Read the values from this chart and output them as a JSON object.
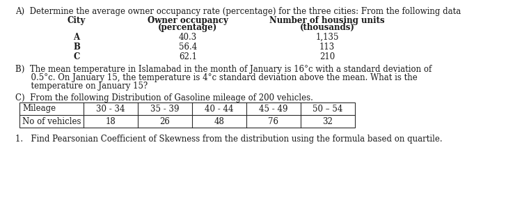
{
  "bg_color": "#ffffff",
  "text_color": "#1a1a1a",
  "section_A_title": "A)  Determine the average owner occupancy rate (percentage) for the three cities: From the following data",
  "col_A_city": "City",
  "col_A_owner": "Owner occupancy",
  "col_A_owner2": "(percentage)",
  "col_A_housing": "Number of housing units",
  "col_A_housing2": "(thousands)",
  "table_A_rows": [
    [
      "A",
      "40.3",
      "1,135"
    ],
    [
      "B",
      "56.4",
      "113"
    ],
    [
      "C",
      "62.1",
      "210"
    ]
  ],
  "section_B_line1": "B)  The mean temperature in Islamabad in the month of January is 16°c with a standard deviation of",
  "section_B_line2": "      0.5°c. On January 15, the temperature is 4°c standard deviation above the mean. What is the",
  "section_B_line3": "      temperature on January 15?",
  "section_C_title": "C)  From the following Distribution of Gasoline mileage of 200 vehicles.",
  "table_C_headers": [
    "Mileage",
    "30 - 34",
    "35 - 39",
    "40 - 44",
    "45 - 49",
    "50 – 54"
  ],
  "table_C_row": [
    "No of vehicles",
    "18",
    "26",
    "48",
    "76",
    "32"
  ],
  "section_C_sub": "1.   Find Pearsonian Coefficient of Skewness from the distribution using the formula based on quartile."
}
